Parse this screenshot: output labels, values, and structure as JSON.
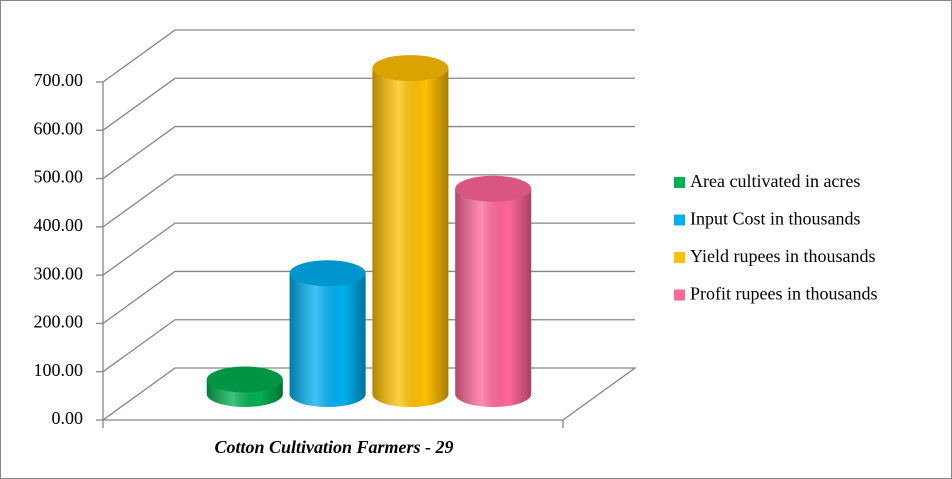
{
  "chart_data": {
    "type": "bar",
    "categories": [
      "Cotton Cultivation Farmers - 29"
    ],
    "series": [
      {
        "name": "Area cultivated in acres",
        "color": "#00b050",
        "values": [
          30
        ]
      },
      {
        "name": "Input Cost in thousands",
        "color": "#00b0f0",
        "values": [
          250
        ]
      },
      {
        "name": "Yield rupees in thousands",
        "color": "#ffc000",
        "values": [
          675
        ]
      },
      {
        "name": "Profit rupees in thousands",
        "color": "#ff6699",
        "values": [
          425
        ]
      }
    ],
    "ylim": [
      0,
      700
    ],
    "yticks": [
      {
        "value": 0,
        "label": "0.00"
      },
      {
        "value": 100,
        "label": "100.00"
      },
      {
        "value": 200,
        "label": "200.00"
      },
      {
        "value": 300,
        "label": "300.00"
      },
      {
        "value": 400,
        "label": "400.00"
      },
      {
        "value": 500,
        "label": "500.00"
      },
      {
        "value": 600,
        "label": "600.00"
      },
      {
        "value": 700,
        "label": "700.00"
      }
    ],
    "grid": true,
    "legend": "right"
  }
}
